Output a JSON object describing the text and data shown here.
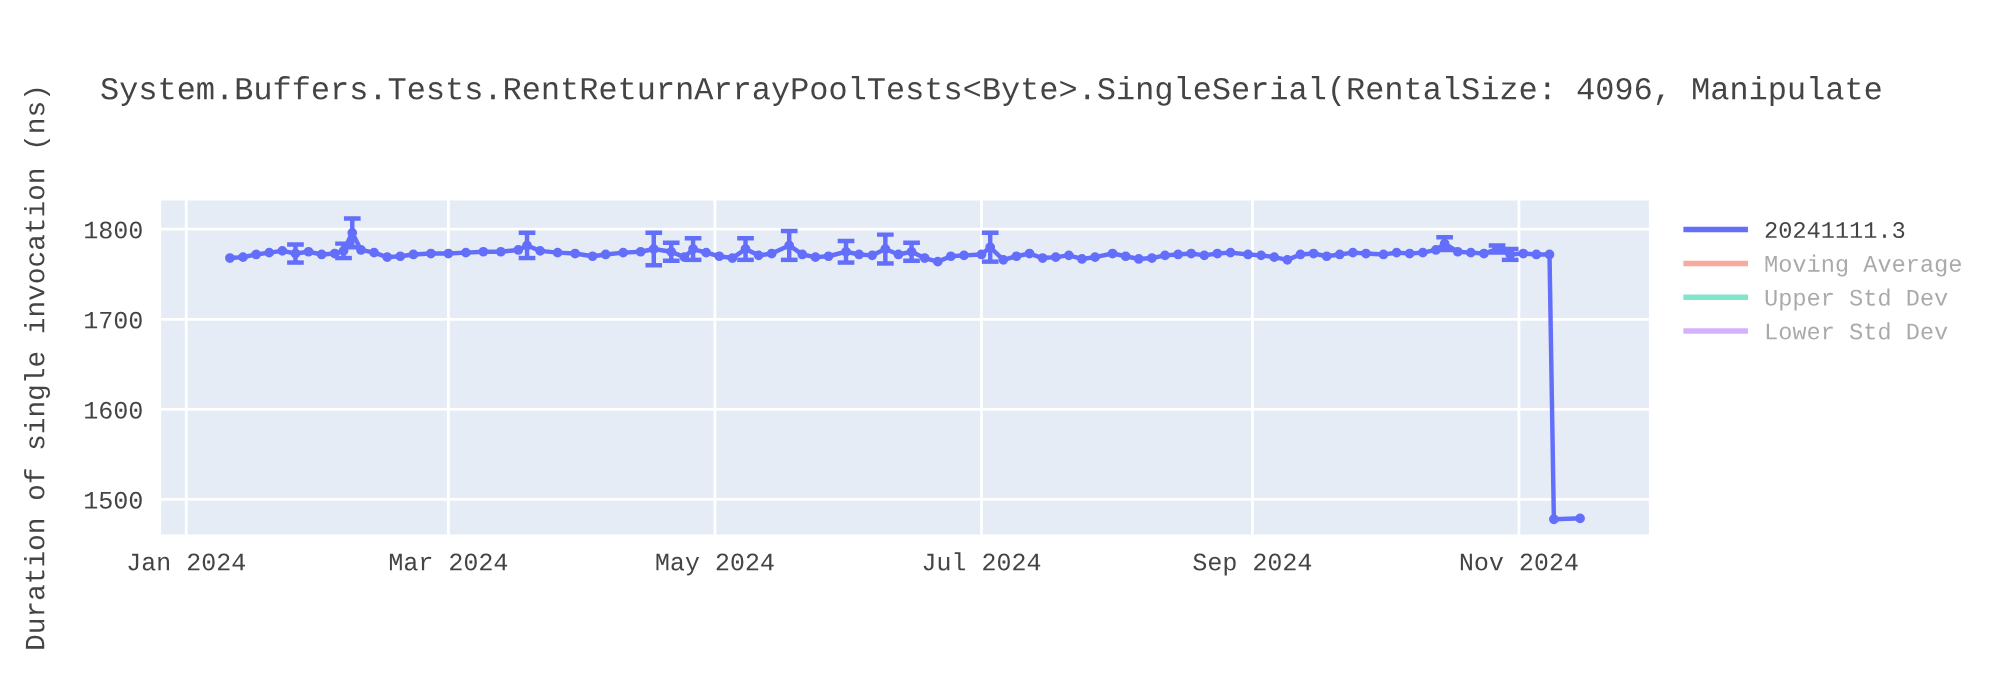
{
  "chart_data": {
    "type": "line",
    "title": "System.Buffers.Tests.RentReturnArrayPoolTests<Byte>.SingleSerial(RentalSize: 4096, Manipulate",
    "ylabel": "Duration of single invocation (ns)",
    "x": [
      "2024-01-11",
      "2024-01-14",
      "2024-01-17",
      "2024-01-20",
      "2024-01-23",
      "2024-01-26",
      "2024-01-29",
      "2024-02-01",
      "2024-02-04",
      "2024-02-06",
      "2024-02-08",
      "2024-02-10",
      "2024-02-13",
      "2024-02-16",
      "2024-02-19",
      "2024-02-22",
      "2024-02-26",
      "2024-03-01",
      "2024-03-05",
      "2024-03-09",
      "2024-03-13",
      "2024-03-17",
      "2024-03-19",
      "2024-03-22",
      "2024-03-26",
      "2024-03-30",
      "2024-04-03",
      "2024-04-06",
      "2024-04-10",
      "2024-04-14",
      "2024-04-17",
      "2024-04-21",
      "2024-04-24",
      "2024-04-26",
      "2024-04-29",
      "2024-05-02",
      "2024-05-05",
      "2024-05-08",
      "2024-05-11",
      "2024-05-14",
      "2024-05-18",
      "2024-05-21",
      "2024-05-24",
      "2024-05-27",
      "2024-05-31",
      "2024-06-03",
      "2024-06-06",
      "2024-06-09",
      "2024-06-12",
      "2024-06-15",
      "2024-06-18",
      "2024-06-21",
      "2024-06-24",
      "2024-06-27",
      "2024-07-01",
      "2024-07-03",
      "2024-07-06",
      "2024-07-09",
      "2024-07-12",
      "2024-07-15",
      "2024-07-18",
      "2024-07-21",
      "2024-07-24",
      "2024-07-27",
      "2024-07-31",
      "2024-08-03",
      "2024-08-06",
      "2024-08-09",
      "2024-08-12",
      "2024-08-15",
      "2024-08-18",
      "2024-08-21",
      "2024-08-24",
      "2024-08-27",
      "2024-08-31",
      "2024-09-03",
      "2024-09-06",
      "2024-09-09",
      "2024-09-12",
      "2024-09-15",
      "2024-09-18",
      "2024-09-21",
      "2024-09-24",
      "2024-09-27",
      "2024-10-01",
      "2024-10-04",
      "2024-10-07",
      "2024-10-10",
      "2024-10-13",
      "2024-10-15",
      "2024-10-18",
      "2024-10-21",
      "2024-10-24",
      "2024-10-27",
      "2024-10-30",
      "2024-11-02",
      "2024-11-05",
      "2024-11-08",
      "2024-11-09",
      "2024-11-15"
    ],
    "series": [
      {
        "name": "20241111.3",
        "color": "#636efa",
        "values": [
          1768,
          1769,
          1772,
          1774,
          1776,
          1773,
          1775,
          1772,
          1773,
          1776,
          1796,
          1777,
          1774,
          1769,
          1770,
          1772,
          1773,
          1773,
          1774,
          1775,
          1775,
          1777,
          1782,
          1776,
          1774,
          1773,
          1770,
          1772,
          1774,
          1775,
          1778,
          1775,
          1769,
          1778,
          1774,
          1770,
          1768,
          1778,
          1771,
          1773,
          1782,
          1772,
          1769,
          1770,
          1775,
          1772,
          1771,
          1778,
          1772,
          1775,
          1768,
          1764,
          1770,
          1771,
          1772,
          1780,
          1766,
          1770,
          1773,
          1768,
          1769,
          1771,
          1767,
          1769,
          1773,
          1770,
          1767,
          1768,
          1771,
          1772,
          1773,
          1771,
          1773,
          1774,
          1772,
          1771,
          1769,
          1766,
          1772,
          1773,
          1770,
          1772,
          1774,
          1773,
          1772,
          1774,
          1773,
          1774,
          1777,
          1784,
          1775,
          1774,
          1773,
          1778,
          1772,
          1773,
          1772,
          1772,
          1478,
          1479
        ],
        "errors": [
          null,
          null,
          null,
          null,
          null,
          10,
          null,
          null,
          null,
          8,
          16,
          null,
          null,
          null,
          null,
          null,
          null,
          null,
          null,
          null,
          null,
          null,
          14,
          null,
          null,
          null,
          null,
          null,
          null,
          null,
          18,
          10,
          null,
          12,
          null,
          null,
          null,
          12,
          null,
          null,
          16,
          null,
          null,
          null,
          12,
          null,
          null,
          16,
          null,
          10,
          null,
          null,
          null,
          null,
          null,
          16,
          null,
          null,
          null,
          null,
          null,
          null,
          null,
          null,
          null,
          null,
          null,
          null,
          null,
          null,
          null,
          null,
          null,
          null,
          null,
          null,
          null,
          null,
          null,
          null,
          null,
          null,
          null,
          null,
          null,
          null,
          null,
          null,
          null,
          7,
          null,
          null,
          null,
          4,
          6,
          null,
          null,
          null,
          null,
          null
        ]
      },
      {
        "name": "Moving Average",
        "color": "#f7aa9d",
        "values": [
          null,
          null,
          null,
          null,
          null,
          null,
          null,
          null,
          null,
          null,
          null,
          null,
          null,
          null,
          null,
          null,
          null,
          null,
          null,
          null,
          null,
          null,
          null,
          null,
          null,
          null,
          null,
          null,
          null,
          null,
          null,
          null,
          null,
          null,
          null,
          null,
          null,
          null,
          null,
          null,
          null,
          null,
          null,
          null,
          null,
          null,
          null,
          null,
          null,
          null,
          null,
          null,
          null,
          null,
          null,
          null,
          null,
          null,
          null,
          null,
          null,
          null,
          null,
          null,
          null,
          null,
          null,
          null,
          null,
          null,
          null,
          null,
          null,
          null,
          null,
          null,
          null,
          null,
          null,
          null,
          null,
          null,
          null,
          null,
          null,
          null,
          null,
          null,
          null,
          null,
          null,
          null,
          null,
          null,
          null,
          null,
          null,
          null,
          null,
          null
        ]
      },
      {
        "name": "Upper Std Dev",
        "color": "#80e6cb",
        "values": [
          null,
          null,
          null,
          null,
          null,
          null,
          null,
          null,
          null,
          null,
          null,
          null,
          null,
          null,
          null,
          null,
          null,
          null,
          null,
          null,
          null,
          null,
          null,
          null,
          null,
          null,
          null,
          null,
          null,
          null,
          null,
          null,
          null,
          null,
          null,
          null,
          null,
          null,
          null,
          null,
          null,
          null,
          null,
          null,
          null,
          null,
          null,
          null,
          null,
          null,
          null,
          null,
          null,
          null,
          null,
          null,
          null,
          null,
          null,
          null,
          null,
          null,
          null,
          null,
          null,
          null,
          null,
          null,
          null,
          null,
          null,
          null,
          null,
          null,
          null,
          null,
          null,
          null,
          null,
          null,
          null,
          null,
          null,
          null,
          null,
          null,
          null,
          null,
          null,
          null,
          null,
          null,
          null,
          null,
          null,
          null,
          null,
          null,
          null,
          null
        ]
      },
      {
        "name": "Lower Std Dev",
        "color": "#d5b1fd",
        "values": [
          null,
          null,
          null,
          null,
          null,
          null,
          null,
          null,
          null,
          null,
          null,
          null,
          null,
          null,
          null,
          null,
          null,
          null,
          null,
          null,
          null,
          null,
          null,
          null,
          null,
          null,
          null,
          null,
          null,
          null,
          null,
          null,
          null,
          null,
          null,
          null,
          null,
          null,
          null,
          null,
          null,
          null,
          null,
          null,
          null,
          null,
          null,
          null,
          null,
          null,
          null,
          null,
          null,
          null,
          null,
          null,
          null,
          null,
          null,
          null,
          null,
          null,
          null,
          null,
          null,
          null,
          null,
          null,
          null,
          null,
          null,
          null,
          null,
          null,
          null,
          null,
          null,
          null,
          null,
          null,
          null,
          null,
          null,
          null,
          null,
          null,
          null,
          null,
          null,
          null,
          null,
          null,
          null,
          null,
          null,
          null,
          null,
          null,
          null,
          null
        ]
      }
    ],
    "xlim": [
      "2023-12-26",
      "2024-12-01"
    ],
    "xticks": [
      {
        "value": "2024-01-01",
        "label": "Jan 2024"
      },
      {
        "value": "2024-03-01",
        "label": "Mar 2024"
      },
      {
        "value": "2024-05-01",
        "label": "May 2024"
      },
      {
        "value": "2024-07-01",
        "label": "Jul 2024"
      },
      {
        "value": "2024-09-01",
        "label": "Sep 2024"
      },
      {
        "value": "2024-11-01",
        "label": "Nov 2024"
      }
    ],
    "ylim": [
      1460,
      1833
    ],
    "yticks": [
      1500,
      1600,
      1700,
      1800
    ],
    "grid": true,
    "legend": "top right",
    "marker": "circle",
    "line_style": "solid"
  }
}
